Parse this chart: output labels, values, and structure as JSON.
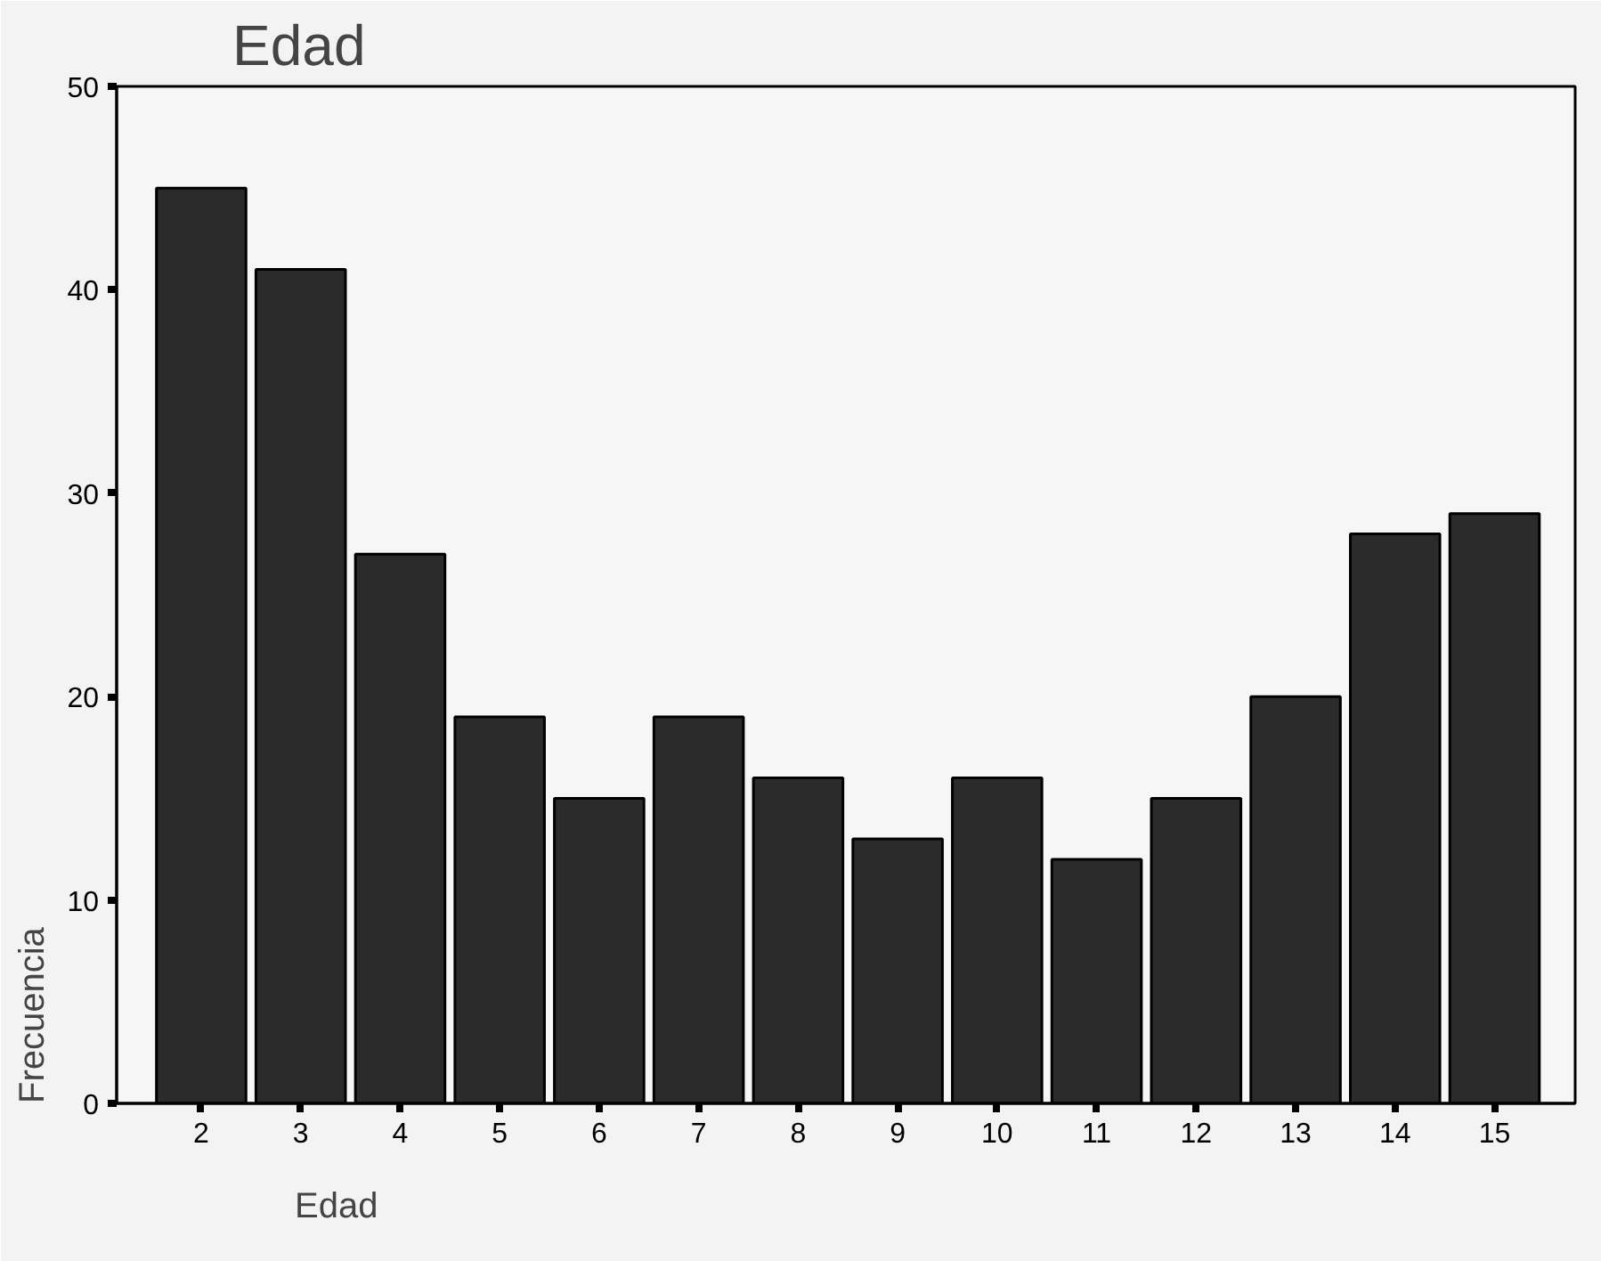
{
  "chart_data": {
    "type": "bar",
    "title": "Edad",
    "xlabel": "Edad",
    "ylabel": "Frecuencia",
    "categories": [
      "2",
      "3",
      "4",
      "5",
      "6",
      "7",
      "8",
      "9",
      "10",
      "11",
      "12",
      "13",
      "14",
      "15"
    ],
    "values": [
      45,
      41,
      27,
      19,
      15,
      19,
      16,
      13,
      16,
      12,
      15,
      20,
      28,
      29
    ],
    "color": "#2b2b2b",
    "ylim": [
      0,
      50
    ],
    "yticks": [
      0,
      10,
      20,
      30,
      40,
      50
    ]
  }
}
